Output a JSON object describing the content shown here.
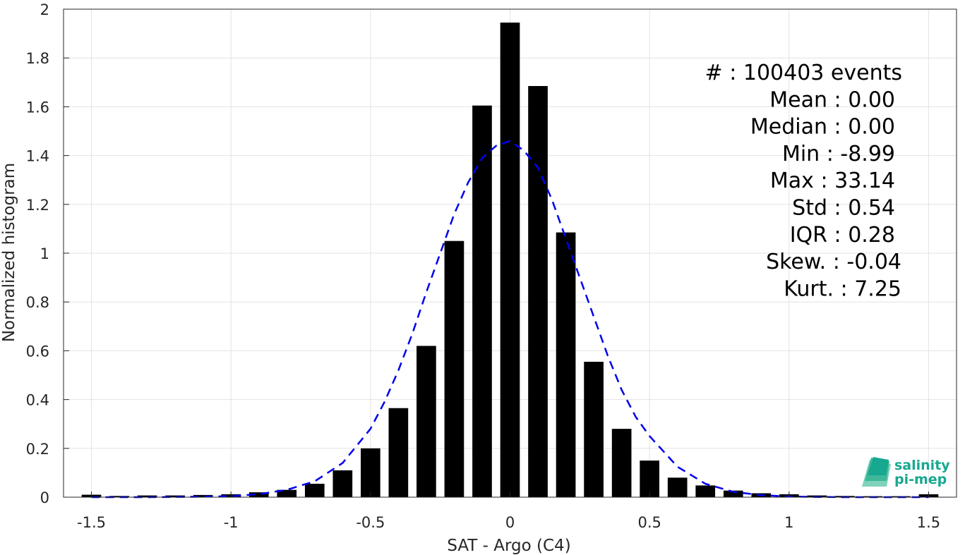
{
  "chart_data": {
    "type": "bar",
    "xlabel": "SAT - Argo (C4)",
    "ylabel": "Normalized histogram",
    "xlim": [
      -1.6,
      1.6
    ],
    "ylim": [
      0,
      2
    ],
    "grid": true,
    "x_ticks": [
      "-1.5",
      "-1",
      "-0.5",
      "0",
      "0.5",
      "1",
      "1.5"
    ],
    "y_ticks": [
      "0",
      "0.2",
      "0.4",
      "0.6",
      "0.8",
      "1",
      "1.2",
      "1.4",
      "1.6",
      "1.8",
      "2"
    ],
    "bar_color": "#000000",
    "histogram": {
      "x": [
        -1.5,
        -1.4,
        -1.3,
        -1.2,
        -1.1,
        -1.0,
        -0.9,
        -0.8,
        -0.7,
        -0.6,
        -0.5,
        -0.4,
        -0.3,
        -0.2,
        -0.1,
        0.0,
        0.1,
        0.2,
        0.3,
        0.4,
        0.5,
        0.6,
        0.7,
        0.8,
        0.9,
        1.0,
        1.1,
        1.2,
        1.3,
        1.4,
        1.5
      ],
      "values": [
        0.01,
        0.005,
        0.007,
        0.007,
        0.009,
        0.012,
        0.02,
        0.03,
        0.055,
        0.11,
        0.2,
        0.365,
        0.62,
        1.05,
        1.605,
        1.945,
        1.685,
        1.085,
        0.555,
        0.28,
        0.15,
        0.08,
        0.048,
        0.027,
        0.016,
        0.012,
        0.007,
        0.005,
        0.004,
        0.004,
        0.012
      ]
    },
    "fit": {
      "name": "",
      "style": "dashed",
      "color": "#0000ee",
      "x": [
        -1.5,
        -1.4,
        -1.3,
        -1.2,
        -1.1,
        -1.0,
        -0.9,
        -0.8,
        -0.7,
        -0.6,
        -0.5,
        -0.45,
        -0.4,
        -0.35,
        -0.3,
        -0.25,
        -0.2,
        -0.15,
        -0.1,
        -0.05,
        0.0,
        0.05,
        0.1,
        0.15,
        0.2,
        0.25,
        0.3,
        0.35,
        0.4,
        0.45,
        0.5,
        0.6,
        0.7,
        0.8,
        0.9,
        1.0,
        1.1,
        1.2,
        1.3,
        1.4,
        1.5
      ],
      "y": [
        0.0,
        0.0,
        0.0,
        0.001,
        0.002,
        0.004,
        0.012,
        0.03,
        0.065,
        0.14,
        0.28,
        0.39,
        0.52,
        0.67,
        0.84,
        1.0,
        1.16,
        1.29,
        1.39,
        1.44,
        1.46,
        1.42,
        1.35,
        1.22,
        1.06,
        0.9,
        0.74,
        0.58,
        0.44,
        0.33,
        0.25,
        0.125,
        0.055,
        0.022,
        0.008,
        0.003,
        0.001,
        0.0,
        0.0,
        0.0,
        0.0
      ]
    },
    "stats": [
      "#  : 100403 events",
      "Mean : 0.00",
      "Median : 0.00",
      "Min : -8.99",
      "Max : 33.14",
      "Std : 0.54",
      "IQR : 0.28",
      "Skew. : -0.04",
      "Kurt. : 7.25"
    ]
  },
  "logo": {
    "line1": "salinity",
    "line2": "pi-mep",
    "color": "#17a88f"
  }
}
